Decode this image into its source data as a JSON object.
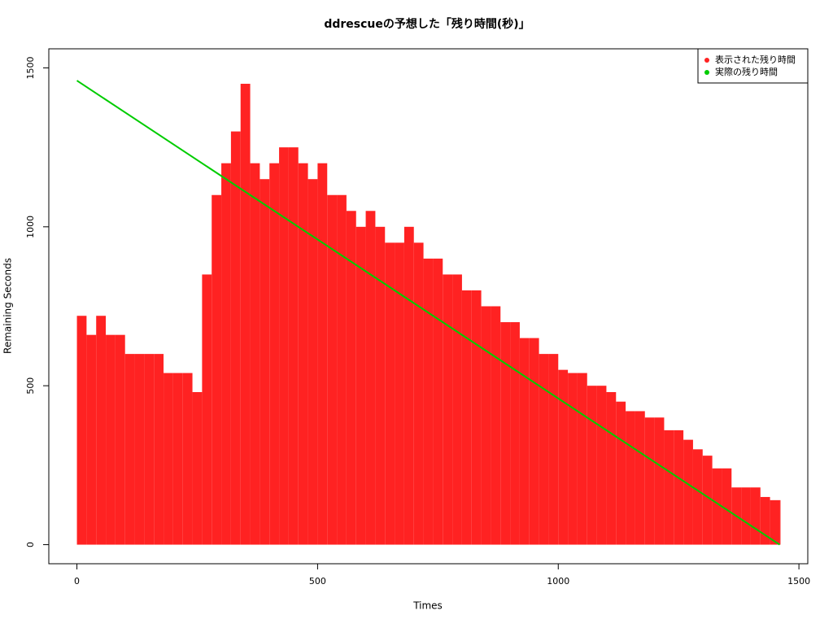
{
  "chart_data": {
    "type": "bar",
    "title": "ddrescueの予想した「残り時間(秒)」",
    "x_label": "Times",
    "y_label": "Remaining Seconds",
    "xlim": [
      -58.4,
      1518.4
    ],
    "ylim": [
      -60,
      1560
    ],
    "xticks": [
      0,
      500,
      1000,
      1500
    ],
    "yticks": [
      0,
      500,
      1000,
      1500
    ],
    "legend": "top-right",
    "series": [
      {
        "name": "表示された残り時間",
        "color": "#ff2222",
        "x": [
          0,
          20,
          40,
          60,
          80,
          100,
          120,
          140,
          160,
          180,
          200,
          220,
          240,
          260,
          280,
          300,
          320,
          340,
          360,
          380,
          400,
          420,
          440,
          460,
          480,
          500,
          520,
          540,
          560,
          580,
          600,
          620,
          640,
          660,
          680,
          700,
          720,
          740,
          760,
          780,
          800,
          820,
          840,
          860,
          880,
          900,
          920,
          940,
          960,
          980,
          1000,
          1020,
          1040,
          1060,
          1080,
          1100,
          1120,
          1140,
          1160,
          1180,
          1200,
          1220,
          1240,
          1260,
          1280,
          1300,
          1320,
          1340,
          1360,
          1380,
          1400,
          1420,
          1440,
          1460
        ],
        "values": [
          720,
          660,
          720,
          660,
          660,
          600,
          600,
          600,
          600,
          540,
          540,
          540,
          480,
          850,
          1100,
          1200,
          1300,
          1450,
          1200,
          1150,
          1200,
          1250,
          1250,
          1200,
          1150,
          1200,
          1100,
          1100,
          1050,
          1000,
          1050,
          1000,
          950,
          950,
          1000,
          950,
          900,
          900,
          850,
          850,
          800,
          800,
          750,
          750,
          700,
          700,
          650,
          650,
          600,
          600,
          550,
          540,
          540,
          500,
          500,
          480,
          450,
          420,
          420,
          400,
          400,
          360,
          360,
          330,
          300,
          280,
          240,
          240,
          180,
          180,
          180,
          150,
          140,
          140
        ]
      },
      {
        "name": "実際の残り時間",
        "color": "#00cc00",
        "type": "line",
        "x": [
          0,
          1460
        ],
        "values": [
          1460,
          0
        ]
      }
    ]
  }
}
